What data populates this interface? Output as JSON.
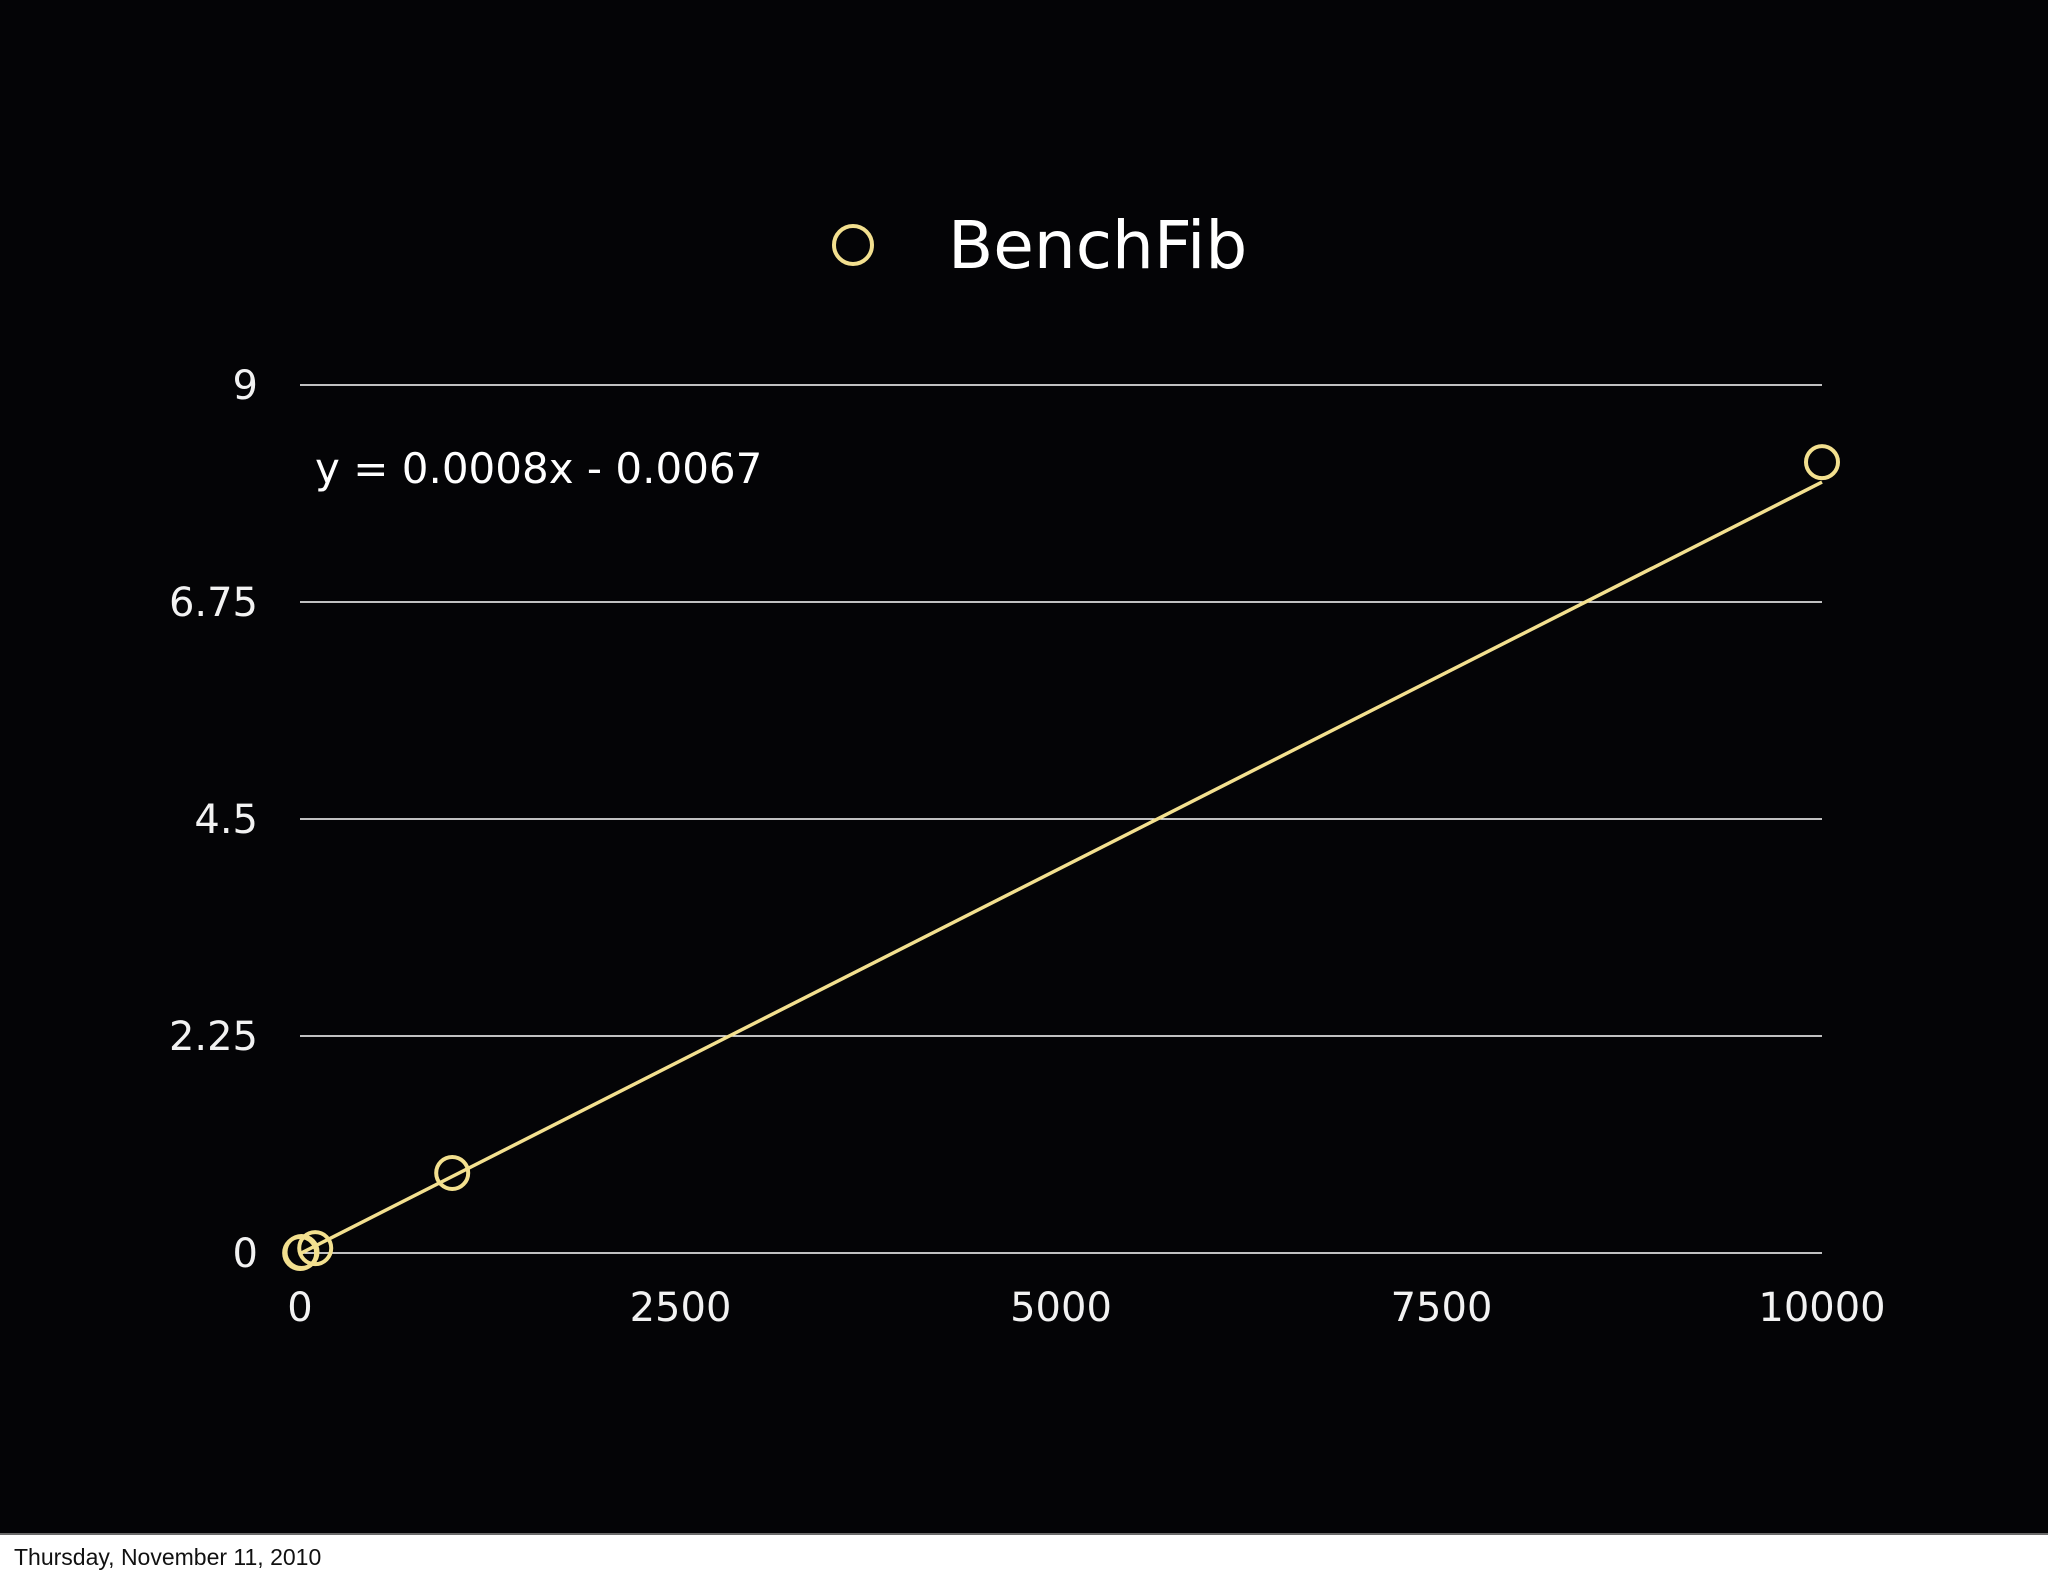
{
  "colors": {
    "background": "#040406",
    "series": "#f3e08f",
    "grid": "#ffffff",
    "text": "#ffffff"
  },
  "footer": {
    "date": "Thursday, November 11, 2010"
  },
  "chart_data": {
    "type": "scatter",
    "title": "",
    "xlabel": "",
    "ylabel": "",
    "xlim": [
      0,
      10000
    ],
    "ylim": [
      0,
      9
    ],
    "x_ticks": [
      "0",
      "2500",
      "5000",
      "7500",
      "10000"
    ],
    "y_ticks": [
      "0",
      "2.25",
      "4.5",
      "6.75",
      "9"
    ],
    "grid": "horizontal",
    "legend": {
      "placement": "top-center",
      "entries": [
        "BenchFib"
      ]
    },
    "series": [
      {
        "name": "BenchFib",
        "marker": "circle-icon",
        "points": [
          {
            "x": 1,
            "y": 0
          },
          {
            "x": 10,
            "y": 0.01
          },
          {
            "x": 100,
            "y": 0.05
          },
          {
            "x": 1000,
            "y": 0.83
          },
          {
            "x": 10000,
            "y": 8.2
          }
        ]
      }
    ],
    "trendline": {
      "type": "linear",
      "slope": 0.0008,
      "intercept": -0.0067,
      "equation": "y = 0.0008x - 0.0067"
    }
  }
}
